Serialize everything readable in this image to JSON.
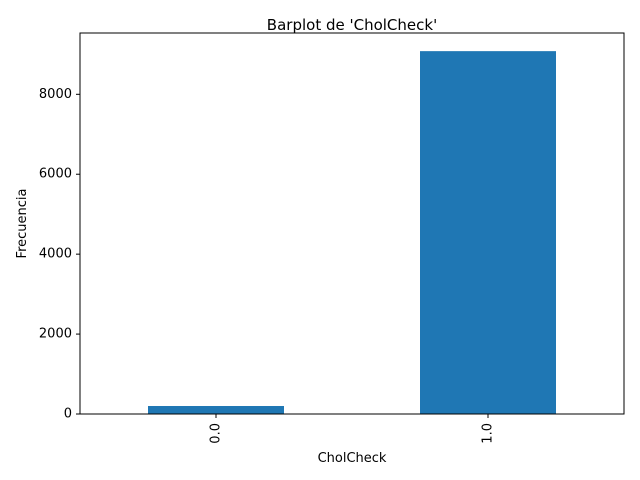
{
  "chart_data": {
    "type": "bar",
    "title": "Barplot de 'CholCheck'",
    "xlabel": "CholCheck",
    "ylabel": "Frecuencia",
    "categories": [
      "0.0",
      "1.0"
    ],
    "values": [
      200,
      9080
    ],
    "ylim": [
      0,
      9534
    ],
    "yticks": [
      0,
      2000,
      4000,
      6000,
      8000
    ],
    "ytick_labels": [
      "0",
      "2000",
      "4000",
      "6000",
      "8000"
    ],
    "grid": false,
    "legend": "none",
    "bar_color": "#1f77b4"
  }
}
